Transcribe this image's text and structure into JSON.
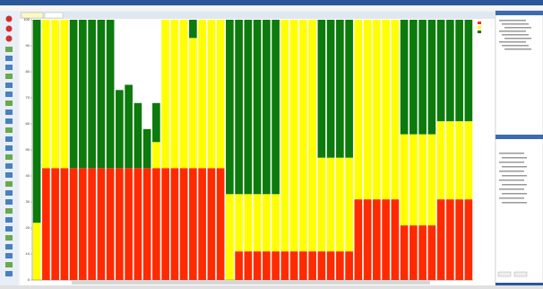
{
  "chart_data": {
    "type": "bar",
    "stacked": true,
    "categories": [
      null,
      null,
      null,
      null,
      null,
      null,
      null,
      null,
      null,
      null,
      null,
      null,
      null,
      null,
      null,
      null,
      null,
      null,
      null,
      null,
      null,
      null,
      null,
      null,
      null,
      null,
      null,
      null,
      null,
      null,
      null,
      null,
      null,
      null,
      null,
      null,
      null,
      null,
      null,
      null,
      null,
      null,
      null,
      null,
      null,
      null,
      null,
      null
    ],
    "series": [
      {
        "color": "#ff2a00",
        "values": [
          0,
          43,
          43,
          43,
          43,
          43,
          43,
          43,
          43,
          43,
          43,
          43,
          43,
          43,
          43,
          43,
          43,
          43,
          43,
          43,
          43,
          0,
          11,
          11,
          11,
          11,
          11,
          11,
          11,
          11,
          11,
          11,
          11,
          11,
          11,
          31,
          31,
          31,
          31,
          31,
          21,
          21,
          21,
          21,
          31,
          31,
          31,
          31
        ]
      },
      {
        "color": "#ffff00",
        "values": [
          22,
          57,
          57,
          57,
          0,
          0,
          0,
          0,
          0,
          0,
          0,
          0,
          0,
          10,
          57,
          57,
          57,
          50,
          57,
          57,
          57,
          33,
          22,
          22,
          22,
          22,
          22,
          89,
          89,
          89,
          89,
          36,
          36,
          36,
          36,
          69,
          69,
          69,
          69,
          69,
          35,
          35,
          35,
          35,
          30,
          30,
          30,
          30
        ]
      },
      {
        "color": "#0c7a0c",
        "values": [
          78,
          0,
          0,
          0,
          57,
          57,
          57,
          57,
          57,
          30,
          32,
          25,
          15,
          15,
          0,
          0,
          0,
          7,
          0,
          0,
          0,
          67,
          67,
          67,
          67,
          67,
          67,
          0,
          0,
          0,
          0,
          53,
          53,
          53,
          53,
          0,
          0,
          0,
          0,
          0,
          44,
          44,
          44,
          44,
          39,
          39,
          39,
          39
        ]
      }
    ],
    "ylim": [
      0,
      100
    ],
    "yticks": [
      0,
      10,
      20,
      30,
      40,
      50,
      60,
      70,
      80,
      90,
      100
    ],
    "grid": false
  }
}
